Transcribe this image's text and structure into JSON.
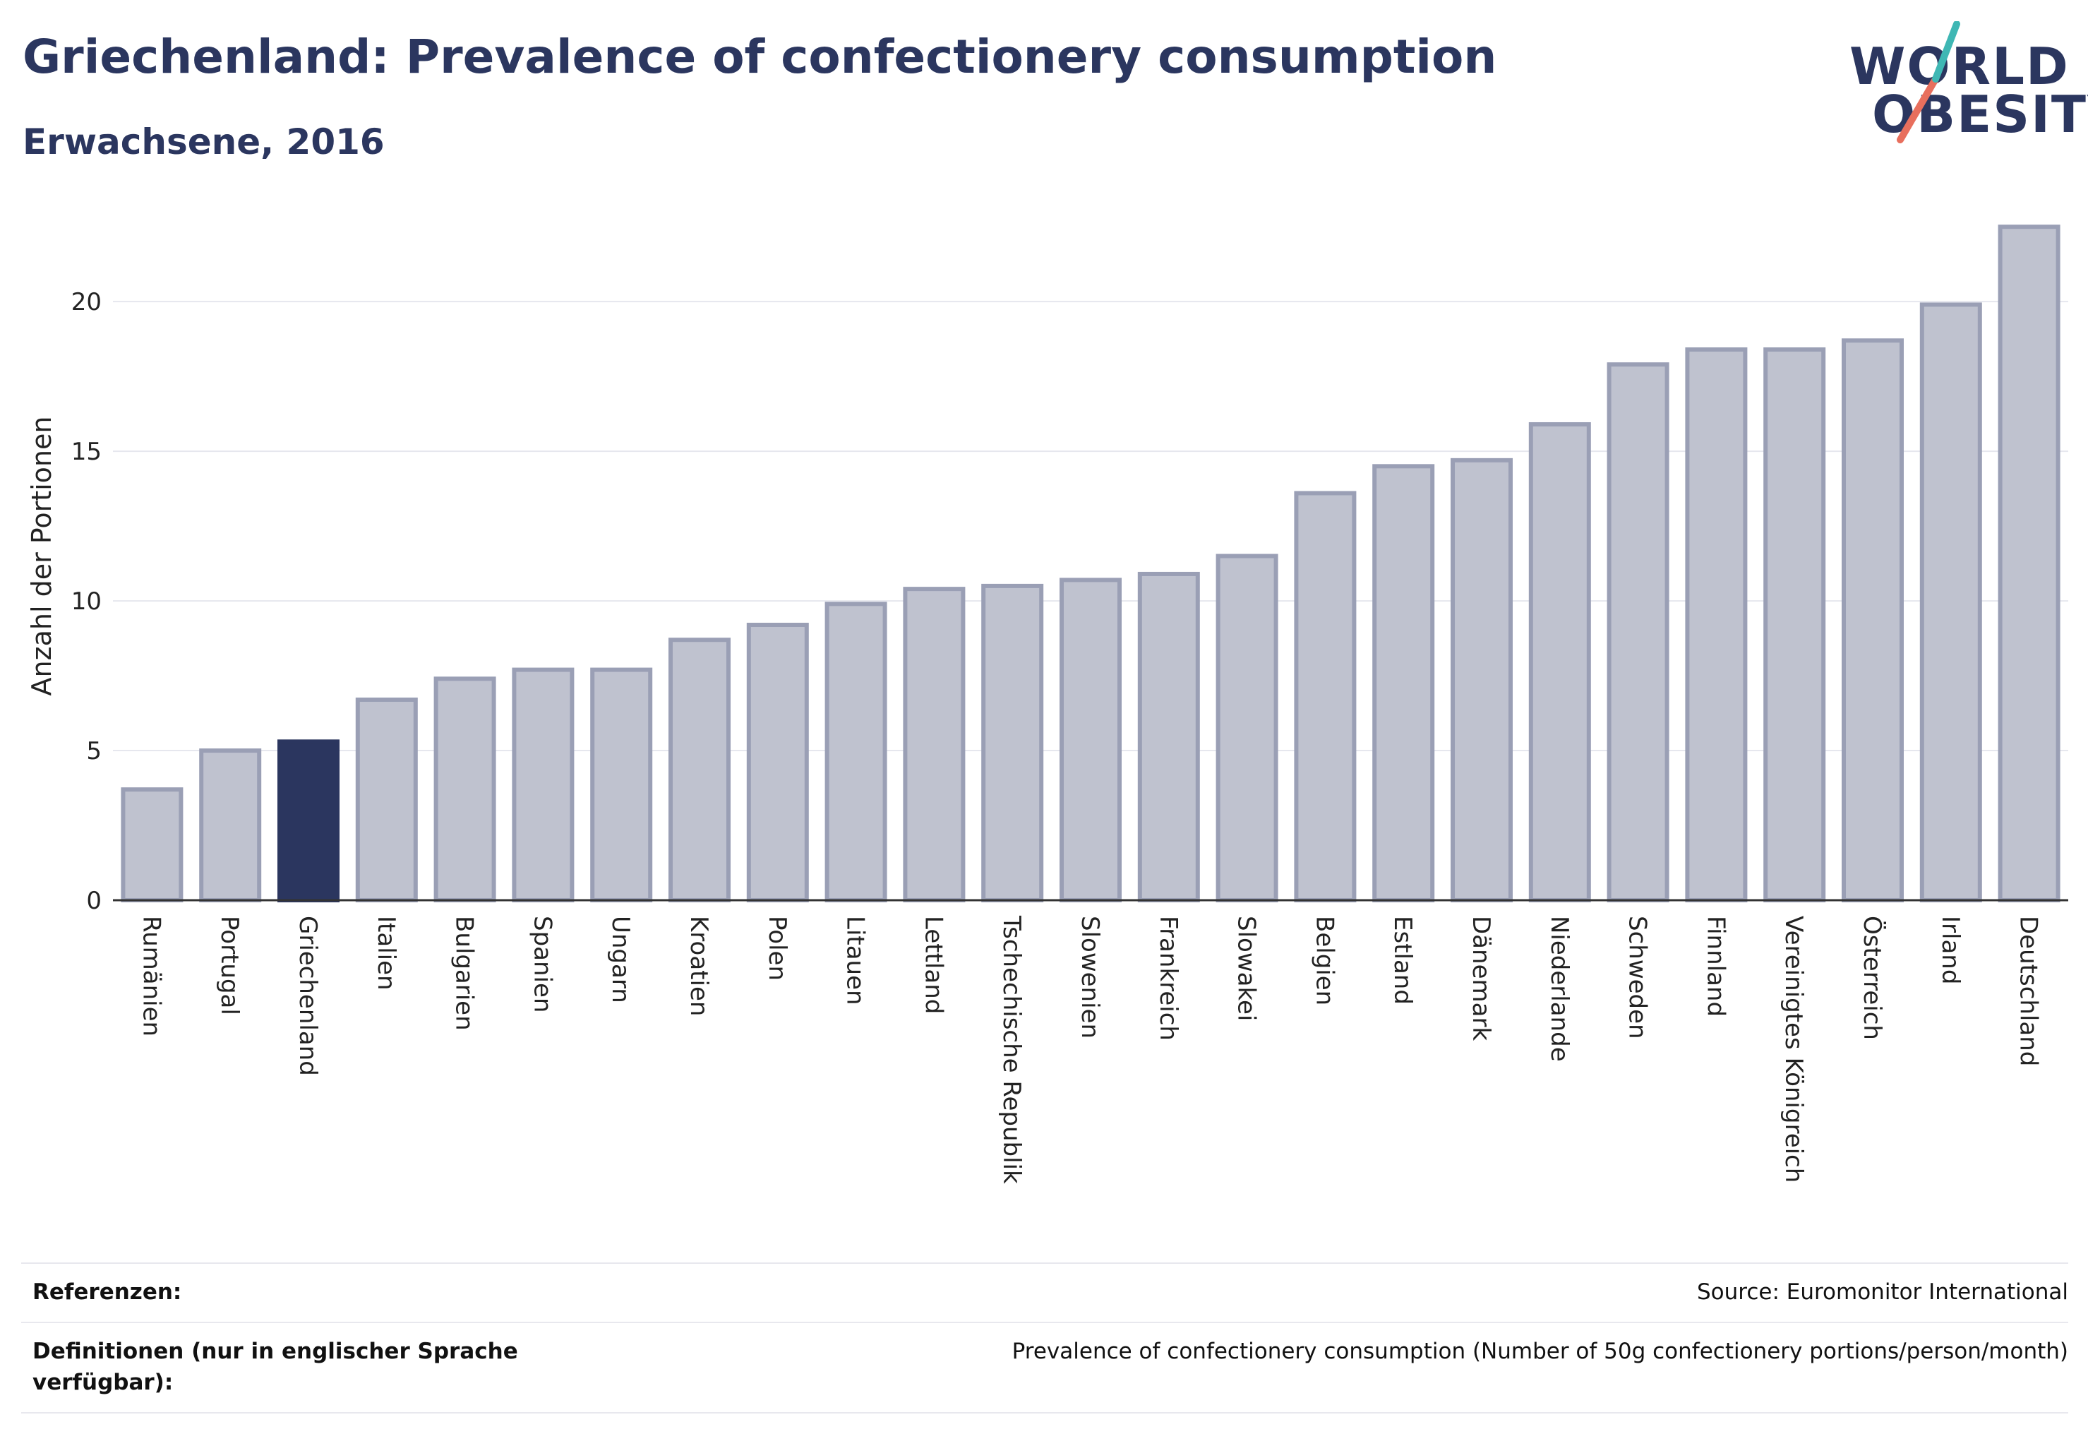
{
  "header": {
    "title": "Griechenland: Prevalence of confectionery consumption",
    "subtitle": "Erwachsene, 2016"
  },
  "logo": {
    "line1": "WORLD",
    "line2": "OBESITY"
  },
  "chart_data": {
    "type": "bar",
    "ylabel": "Anzahl der Portionen",
    "ylim": [
      0,
      23
    ],
    "yticks": [
      0,
      5,
      10,
      15,
      20
    ],
    "grid": true,
    "categories": [
      "Rumänien",
      "Portugal",
      "Griechenland",
      "Italien",
      "Bulgarien",
      "Spanien",
      "Ungarn",
      "Kroatien",
      "Polen",
      "Litauen",
      "Lettland",
      "Tschechische Republik",
      "Slowenien",
      "Frankreich",
      "Slowakei",
      "Belgien",
      "Estland",
      "Dänemark",
      "Niederlande",
      "Schweden",
      "Finnland",
      "Vereinigtes Königreich",
      "Österreich",
      "Irland",
      "Deutschland"
    ],
    "values": [
      3.7,
      5.0,
      5.3,
      6.7,
      7.4,
      7.7,
      7.7,
      8.7,
      9.2,
      9.9,
      10.4,
      10.5,
      10.7,
      10.9,
      11.5,
      13.6,
      14.5,
      14.7,
      15.9,
      17.9,
      18.4,
      18.4,
      18.7,
      19.9,
      22.5
    ],
    "highlight": "Griechenland",
    "colors": {
      "bar": "#bfc2cf",
      "bar_edge": "#9a9fb5",
      "highlight": "#2b365f"
    }
  },
  "footer": {
    "references_label": "Referenzen:",
    "references_value": "Source: Euromonitor International",
    "definitions_label": "Definitionen (nur in englischer Sprache verfügbar):",
    "definitions_value": "Prevalence of confectionery consumption (Number of 50g confectionery portions/person/month)"
  }
}
